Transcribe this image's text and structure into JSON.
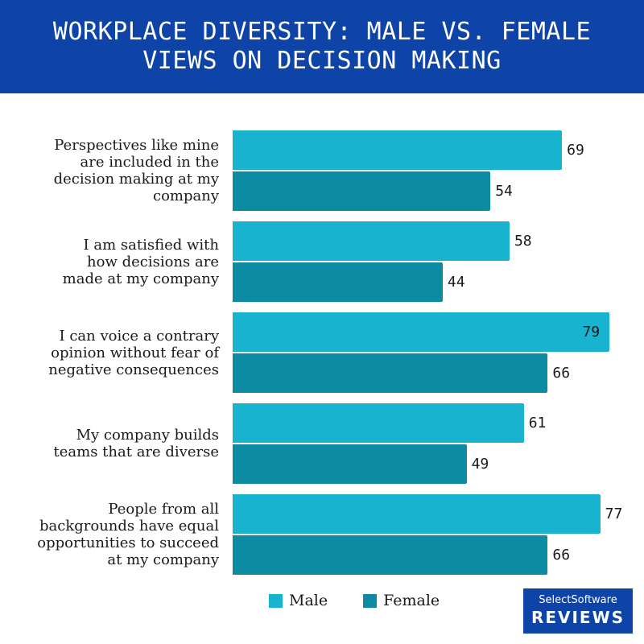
{
  "header": {
    "title": "WORKPLACE DIVERSITY: MALE VS. FEMALE VIEWS ON DECISION MAKING"
  },
  "colors": {
    "male": "#17b3cf",
    "female": "#0c8ba2",
    "header_bg": "#0e44a8"
  },
  "chart_data": {
    "type": "bar",
    "orientation": "horizontal",
    "title": "WORKPLACE DIVERSITY: MALE VS. FEMALE VIEWS ON DECISION MAKING",
    "categories": [
      "Perspectives like mine are included in the decision making at my company",
      "I am satisfied with how decisions are made at my company",
      "I can voice a contrary opinion without fear of negative consequences",
      "My company builds teams that are diverse",
      "People from all backgrounds have equal opportunities to succeed at my company"
    ],
    "category_lines": [
      [
        "Perspectives like mine",
        "are included in the",
        "decision making at my",
        "company"
      ],
      [
        "I am satisfied with",
        "how decisions are",
        "made at my company"
      ],
      [
        "I can voice a contrary",
        "opinion without fear of",
        "negative consequences"
      ],
      [
        "My company builds",
        "teams that are diverse"
      ],
      [
        "People from all",
        "backgrounds have equal",
        "opportunities to succeed",
        "at my company"
      ]
    ],
    "series": [
      {
        "name": "Male",
        "values": [
          69,
          58,
          79,
          61,
          77
        ]
      },
      {
        "name": "Female",
        "values": [
          54,
          44,
          66,
          49,
          66
        ]
      }
    ],
    "legend_position": "bottom",
    "data_labels": true
  },
  "brand": {
    "line1": "SelectSoftware",
    "line2": "REVIEWS"
  }
}
